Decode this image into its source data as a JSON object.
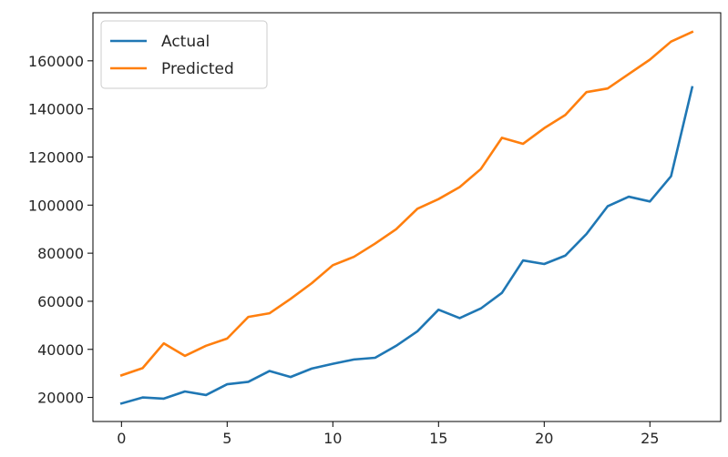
{
  "chart_data": {
    "type": "line",
    "title": "",
    "xlabel": "",
    "ylabel": "",
    "xlim": [
      -1.35,
      28.35
    ],
    "ylim": [
      10000,
      180000
    ],
    "grid": false,
    "legend_position": "top-left",
    "x_ticks": [
      0,
      5,
      10,
      15,
      20,
      25
    ],
    "y_ticks": [
      20000,
      40000,
      60000,
      80000,
      100000,
      120000,
      140000,
      160000
    ],
    "x": [
      0,
      1,
      2,
      3,
      4,
      5,
      6,
      7,
      8,
      9,
      10,
      11,
      12,
      13,
      14,
      15,
      16,
      17,
      18,
      19,
      20,
      21,
      22,
      23,
      24,
      25,
      26,
      27
    ],
    "series": [
      {
        "name": "Actual",
        "color": "#1f77b4",
        "values": [
          17500,
          20000,
          19500,
          22500,
          21000,
          25500,
          26500,
          31000,
          28500,
          32000,
          34000,
          35800,
          36500,
          41500,
          47500,
          56500,
          53000,
          57000,
          63500,
          77000,
          75500,
          79000,
          88000,
          99500,
          103500,
          101500,
          112000,
          149000
        ]
      },
      {
        "name": "Predicted",
        "color": "#ff7f0e",
        "values": [
          29200,
          32200,
          42500,
          37300,
          41500,
          44500,
          53500,
          55000,
          61000,
          67500,
          75000,
          78500,
          84000,
          90000,
          98500,
          102500,
          107500,
          115000,
          128000,
          125500,
          132000,
          137500,
          147000,
          148500,
          154500,
          160500,
          168000,
          172000
        ]
      }
    ]
  }
}
